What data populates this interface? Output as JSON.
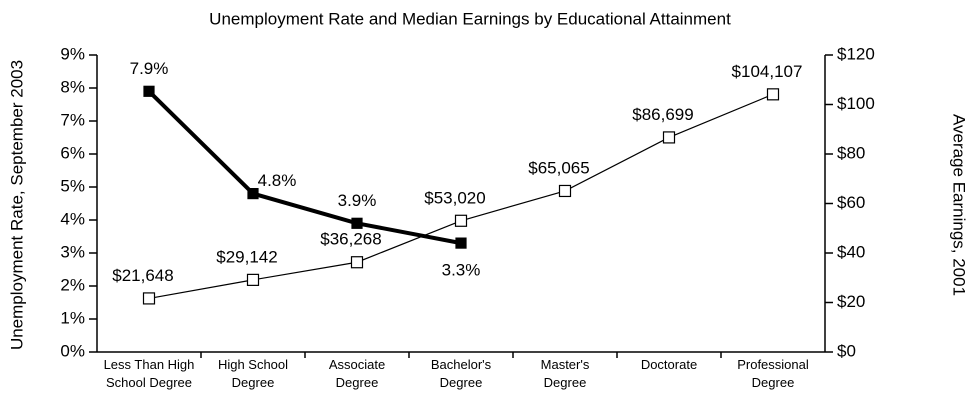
{
  "chart_data": {
    "type": "line",
    "title": "Unemployment Rate and Median Earnings by Educational Attainment",
    "y_label": "Unemployment Rate, September 2003",
    "y2_label": "Average Earnings, 2001",
    "categories": [
      "Less Than High School Degree",
      "High School Degree",
      "Associate Degree",
      "Bachelor's Degree",
      "Master's Degree",
      "Doctorate",
      "Professional Degree"
    ],
    "ylim": [
      0,
      9
    ],
    "yticks": [
      {
        "value": 0,
        "label": "0%"
      },
      {
        "value": 1,
        "label": "1%"
      },
      {
        "value": 2,
        "label": "2%"
      },
      {
        "value": 3,
        "label": "3%"
      },
      {
        "value": 4,
        "label": "4%"
      },
      {
        "value": 5,
        "label": "5%"
      },
      {
        "value": 6,
        "label": "6%"
      },
      {
        "value": 7,
        "label": "7%"
      },
      {
        "value": 8,
        "label": "8%"
      },
      {
        "value": 9,
        "label": "9%"
      }
    ],
    "y2lim": [
      0,
      120
    ],
    "y2ticks": [
      {
        "value": 0,
        "label": "$0"
      },
      {
        "value": 20,
        "label": "$20"
      },
      {
        "value": 40,
        "label": "$40"
      },
      {
        "value": 60,
        "label": "$60"
      },
      {
        "value": 80,
        "label": "$80"
      },
      {
        "value": 100,
        "label": "$100"
      },
      {
        "value": 120,
        "label": "$120"
      }
    ],
    "series": [
      {
        "name": "Unemployment Rate",
        "color": "#000000",
        "marker": "filled-square",
        "values": [
          7.9,
          4.8,
          3.9,
          3.3,
          null,
          null,
          null
        ],
        "value_labels": [
          "7.9%",
          "4.8%",
          "3.9%",
          "3.3%",
          null,
          null,
          null
        ]
      },
      {
        "name": "Average Earnings",
        "color": "#000000",
        "marker": "hollow-square",
        "axis": "y2",
        "values": [
          21.648,
          29.142,
          36.268,
          53.02,
          65.065,
          86.699,
          104.107
        ],
        "value_labels": [
          "$21,648",
          "$29,142",
          "$36,268",
          "$53,020",
          "$65,065",
          "$86,699",
          "$104,107"
        ]
      }
    ]
  }
}
